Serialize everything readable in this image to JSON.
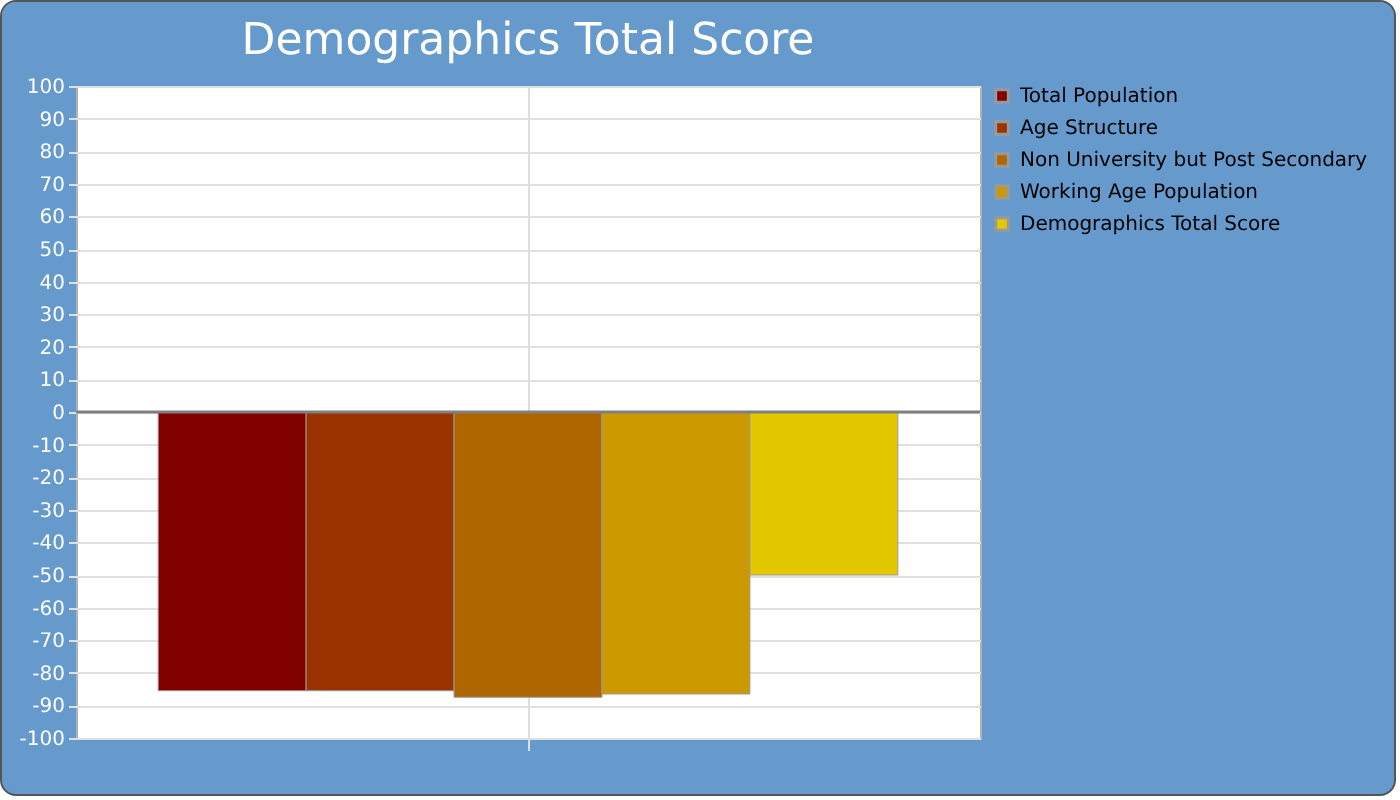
{
  "chart_data": {
    "type": "bar",
    "title": "Demographics Total Score",
    "categories": [
      null
    ],
    "series": [
      {
        "name": "Total Population",
        "color": "#800000",
        "values": [
          -85.5
        ]
      },
      {
        "name": "Age Structure",
        "color": "#993300",
        "values": [
          -85.5
        ]
      },
      {
        "name": "Non University but Post Secondary",
        "color": "#b06600",
        "values": [
          -87.5
        ]
      },
      {
        "name": "Working Age Population",
        "color": "#cc9900",
        "values": [
          -86.5
        ]
      },
      {
        "name": "Demographics Total Score",
        "color": "#e3c800",
        "values": [
          -50
        ]
      }
    ],
    "ylim": [
      -100,
      100
    ],
    "yticks": [
      -100,
      -90,
      -80,
      -70,
      -60,
      -50,
      -40,
      -30,
      -20,
      -10,
      0,
      10,
      20,
      30,
      40,
      50,
      60,
      70,
      80,
      90,
      100
    ],
    "ref_lines": [
      {
        "axis": "y",
        "value": 0,
        "color": "#808080"
      }
    ],
    "grid": true,
    "legend": "right",
    "tick_labels": "y"
  }
}
